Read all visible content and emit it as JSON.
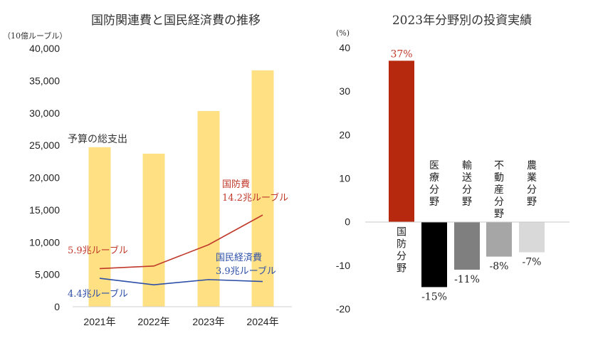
{
  "chart_data": [
    {
      "type": "bar",
      "title": "国防関連費と国民経済費の推移",
      "unit_label": "（10億ルーブル）",
      "categories": [
        "2021年",
        "2022年",
        "2023年",
        "2024年"
      ],
      "ylim": [
        0,
        40000
      ],
      "yticks": [
        "0",
        "5,000",
        "10,000",
        "15,000",
        "20,000",
        "25,000",
        "30,000",
        "35,000",
        "40,000"
      ],
      "grid": false,
      "bar_series": {
        "name": "予算の総支出",
        "color": "#FFE083",
        "values": [
          24700,
          23700,
          30300,
          36600
        ]
      },
      "line_series": [
        {
          "name": "国防費",
          "color": "#C0392B",
          "values": [
            5900,
            6300,
            9600,
            14200
          ],
          "start_label": "5.9兆ルーブル",
          "end_label": "14.2兆ルーブル"
        },
        {
          "name": "国民経済費",
          "color": "#2D4FA8",
          "values": [
            4400,
            3400,
            4200,
            3900
          ],
          "start_label": "4.4兆ルーブル",
          "end_label": "3.9兆ルーブル"
        }
      ]
    },
    {
      "type": "bar",
      "title": "2023年分野別の投資実績",
      "unit_label": "(%)",
      "ylim": [
        -20,
        40
      ],
      "yticks": [
        "-20",
        "-10",
        "0",
        "10",
        "20",
        "30",
        "40"
      ],
      "grid": false,
      "bars": [
        {
          "category": "国防分野",
          "value": 37,
          "value_label": "37%",
          "color": "#B7290E",
          "label_color": "#C0392B"
        },
        {
          "category": "医療分野",
          "value": -15,
          "value_label": "-15%",
          "color": "#000000",
          "label_color": "#222222"
        },
        {
          "category": "輸送分野",
          "value": -11,
          "value_label": "-11%",
          "color": "#7F7F7F",
          "label_color": "#222222"
        },
        {
          "category": "不動産分野",
          "value": -8,
          "value_label": "-8%",
          "color": "#A6A6A6",
          "label_color": "#222222"
        },
        {
          "category": "農業分野",
          "value": -7,
          "value_label": "-7%",
          "color": "#D9D9D9",
          "label_color": "#222222"
        }
      ]
    }
  ]
}
